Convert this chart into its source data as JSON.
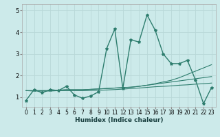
{
  "xlabel": "Humidex (Indice chaleur)",
  "xlim": [
    -0.5,
    23.5
  ],
  "ylim": [
    0.55,
    5.3
  ],
  "xticks": [
    0,
    1,
    2,
    3,
    4,
    5,
    6,
    7,
    8,
    9,
    10,
    11,
    12,
    13,
    14,
    15,
    16,
    17,
    18,
    19,
    20,
    21,
    22,
    23
  ],
  "yticks": [
    1,
    2,
    3,
    4,
    5
  ],
  "background_color": "#cceaea",
  "grid_color": "#b8d8d8",
  "line_color": "#2e7d6e",
  "main_line": [
    0.85,
    1.35,
    1.2,
    1.35,
    1.3,
    1.5,
    1.1,
    0.95,
    1.05,
    1.25,
    3.25,
    4.15,
    1.4,
    3.65,
    3.55,
    4.8,
    4.1,
    3.0,
    2.55,
    2.55,
    2.7,
    1.8,
    0.7,
    1.45
  ],
  "trend_lines": [
    [
      1.3,
      1.3,
      1.3,
      1.3,
      1.32,
      1.34,
      1.34,
      1.34,
      1.36,
      1.38,
      1.4,
      1.42,
      1.44,
      1.46,
      1.5,
      1.55,
      1.6,
      1.65,
      1.7,
      1.75,
      1.8,
      1.85,
      1.9,
      1.95
    ],
    [
      1.3,
      1.3,
      1.3,
      1.3,
      1.32,
      1.34,
      1.34,
      1.34,
      1.36,
      1.38,
      1.4,
      1.42,
      1.44,
      1.46,
      1.5,
      1.55,
      1.62,
      1.7,
      1.78,
      1.9,
      2.05,
      2.2,
      2.35,
      2.5
    ],
    [
      1.3,
      1.28,
      1.28,
      1.28,
      1.3,
      1.3,
      1.3,
      1.3,
      1.3,
      1.32,
      1.33,
      1.35,
      1.37,
      1.4,
      1.42,
      1.45,
      1.48,
      1.5,
      1.52,
      1.55,
      1.57,
      1.6,
      1.62,
      1.65
    ]
  ]
}
